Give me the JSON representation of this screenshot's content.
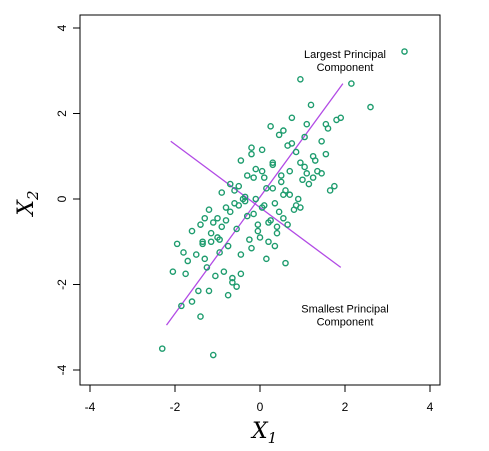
{
  "chart_data": {
    "type": "scatter",
    "title": "",
    "xlabel": {
      "main": "X",
      "sub": "1"
    },
    "ylabel": {
      "main": "X",
      "sub": "2"
    },
    "xlim": [
      -4,
      4
    ],
    "ylim": [
      -4,
      4
    ],
    "xticks": [
      -4,
      -2,
      0,
      2,
      4
    ],
    "yticks": [
      -4,
      -2,
      0,
      2,
      4
    ],
    "grid": false,
    "colors": {
      "points": "#1e9c6e",
      "lines": "#b24be5",
      "axes": "#000000"
    },
    "annotations": [
      {
        "lines": [
          "Largest Principal",
          "Component"
        ],
        "x": 2.0,
        "y": 3.3
      },
      {
        "lines": [
          "Smallest Principal",
          "Component"
        ],
        "x": 2.0,
        "y": -2.65
      }
    ],
    "principal_components": [
      {
        "name": "Largest Principal",
        "x": [
          -2.2,
          1.95
        ],
        "y": [
          -2.95,
          2.7
        ]
      },
      {
        "name": "Smallest Principal",
        "x": [
          -2.1,
          1.9
        ],
        "y": [
          1.35,
          -1.6
        ]
      }
    ],
    "points": {
      "x": [
        3.4,
        2.15,
        2.6,
        0.95,
        1.8,
        1.55,
        0.55,
        -1.1,
        -2.3,
        -1.85,
        -1.75,
        -2.05,
        -0.2,
        -0.45,
        0.1,
        0.75,
        1.05,
        1.25,
        0.5,
        0.3,
        -0.1,
        0.15,
        0.6,
        1.6,
        1.75,
        1.1,
        0.9,
        0.35,
        -0.3,
        -0.5,
        -0.7,
        -0.9,
        -1.2,
        -1.4,
        -1.6,
        -1.3,
        -1.0,
        -0.8,
        -0.6,
        -0.35,
        -0.15,
        0.05,
        0.2,
        0.45,
        0.7,
        0.85,
        1.3,
        1.45,
        1.0,
        0.65,
        0.4,
        0.25,
        -0.05,
        -0.25,
        -0.55,
        -0.75,
        -0.95,
        -1.15,
        -1.35,
        -1.5,
        -1.7,
        -1.95,
        -1.25,
        -1.05,
        -0.85,
        -0.65,
        -0.45,
        -0.2,
        0.0,
        0.15,
        0.35,
        0.55,
        0.8,
        1.15,
        1.35,
        1.55,
        0.95,
        0.7,
        0.5,
        0.3,
        0.1,
        -0.1,
        -0.3,
        -0.5,
        -0.7,
        -0.9,
        -1.1,
        -1.3,
        -0.6,
        -0.4,
        -0.8,
        -1.0,
        -1.45,
        -0.2,
        0.05,
        0.25,
        0.45,
        0.65,
        0.85,
        1.05,
        1.25,
        1.45,
        1.65,
        -0.55,
        -0.75,
        -1.2,
        -1.4,
        -1.6,
        -1.8,
        -0.05,
        0.4,
        0.6,
        0.2,
        -0.35,
        1.9,
        1.2,
        0.75,
        -0.95,
        -1.15,
        -1.35,
        0.95,
        0.05,
        -0.15,
        0.3,
        0.55,
        -0.65,
        -0.45,
        1.1
      ],
      "y": [
        3.45,
        2.7,
        2.15,
        2.8,
        1.85,
        1.75,
        1.6,
        -3.65,
        -3.5,
        -2.5,
        -1.75,
        -1.7,
        1.2,
        0.9,
        0.5,
        1.3,
        1.45,
        1.0,
        0.4,
        0.8,
        0.7,
        0.25,
        0.2,
        1.65,
        0.3,
        0.6,
        0.0,
        -0.1,
        0.55,
        0.3,
        0.35,
        0.15,
        -0.25,
        -0.6,
        -0.75,
        -0.45,
        -0.9,
        -0.5,
        -0.1,
        0.05,
        -0.35,
        -0.2,
        -0.55,
        -0.3,
        0.1,
        -0.15,
        0.9,
        1.35,
        0.45,
        -0.6,
        -0.8,
        -0.5,
        -0.75,
        -0.95,
        -0.7,
        -1.1,
        -1.25,
        -1.0,
        -1.05,
        -1.3,
        -1.45,
        -1.05,
        -1.6,
        -1.8,
        -1.7,
        -1.95,
        -1.3,
        -1.15,
        -0.9,
        -1.4,
        -1.1,
        -0.45,
        -0.25,
        0.35,
        0.65,
        1.05,
        0.85,
        0.65,
        0.55,
        0.25,
        -0.15,
        0.0,
        -0.4,
        -0.15,
        -0.3,
        -0.65,
        -0.55,
        -1.4,
        0.2,
        0.0,
        -0.2,
        -0.45,
        -2.15,
        1.05,
        1.15,
        1.7,
        1.5,
        1.25,
        1.1,
        0.75,
        0.5,
        0.6,
        0.2,
        -2.05,
        -2.25,
        -2.15,
        -2.75,
        -2.4,
        -1.25,
        -0.6,
        -0.65,
        -1.5,
        -1.0,
        -0.05,
        1.9,
        2.2,
        1.9,
        -0.95,
        -0.8,
        -1.0,
        -0.2,
        0.65,
        0.5,
        0.85,
        0.1,
        -1.85,
        -1.75,
        1.75
      ]
    }
  }
}
